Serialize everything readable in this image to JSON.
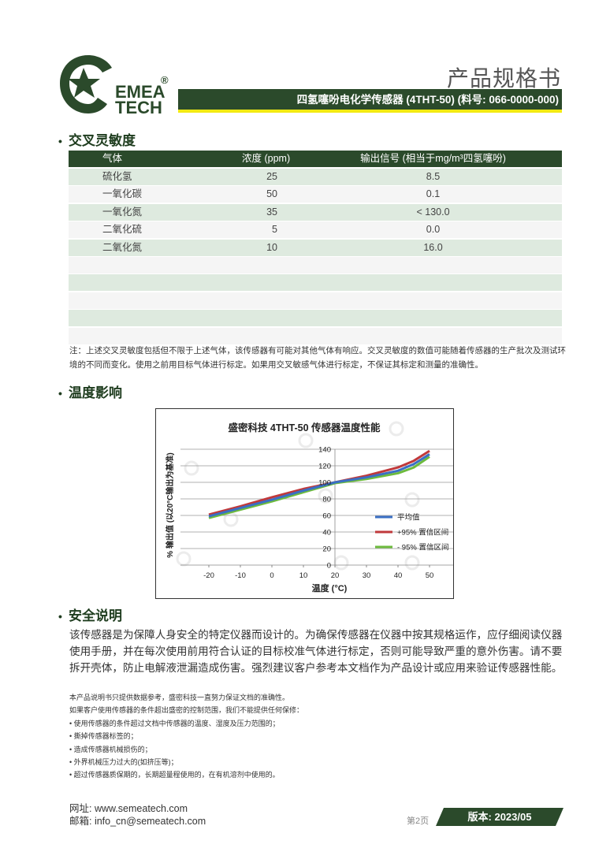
{
  "header": {
    "logo_text": "SEMEA TECH",
    "doc_title": "产品规格书",
    "product_line": "四氢噻吩电化学传感器 (4THT-50) (料号: 066-0000-000)",
    "brand_color": "#2b4a2b",
    "accent_color": "#f2ea13"
  },
  "cross_sensitivity": {
    "title": "交叉灵敏度",
    "columns": [
      "气体",
      "浓度 (ppm)",
      "输出信号 (相当于mg/m³四氢噻吩)"
    ],
    "rows": [
      [
        "硫化氢",
        "25",
        "8.5"
      ],
      [
        "一氧化碳",
        "50",
        "0.1"
      ],
      [
        "一氧化氮",
        "35",
        "< 130.0"
      ],
      [
        "二氧化硫",
        "5",
        "0.0"
      ],
      [
        "二氧化氮",
        "10",
        "16.0"
      ],
      [
        "",
        "",
        ""
      ],
      [
        "",
        "",
        ""
      ],
      [
        "",
        "",
        ""
      ],
      [
        "",
        "",
        ""
      ],
      [
        "",
        "",
        ""
      ]
    ],
    "note": "注：上述交叉灵敏度包括但不限于上述气体，该传感器有可能对其他气体有响应。交叉灵敏度的数值可能随着传感器的生产批次及测试环境的不同而变化。使用之前用目标气体进行标定。如果用交叉敏感气体进行标定，不保证其标定和测量的准确性。"
  },
  "temperature": {
    "title": "温度影响"
  },
  "chart_data": {
    "type": "line",
    "title": "盛密科技  4THT-50  传感器温度性能",
    "xlabel": "温度 (°C)",
    "ylabel": "% 输出值 (以20°C输出为基准)",
    "x": [
      -20,
      -10,
      0,
      10,
      20,
      30,
      40,
      45,
      50
    ],
    "xticks": [
      "-20",
      "-10",
      "0",
      "10",
      "20",
      "30",
      "40",
      "50"
    ],
    "yticks": [
      "0",
      "20",
      "40",
      "60",
      "80",
      "100",
      "120",
      "140"
    ],
    "xlim": [
      -20,
      50
    ],
    "ylim": [
      0,
      140
    ],
    "grid": true,
    "legend": "right",
    "watermark": "盛密科技SemeaTech",
    "series": [
      {
        "name": "平均值",
        "color": "#3a6fc4",
        "values": [
          59,
          69,
          79,
          90,
          100,
          106,
          114,
          122,
          134
        ]
      },
      {
        "name": "+95% 置信区间",
        "color": "#c0393b",
        "values": [
          61,
          71,
          82,
          92,
          100,
          108,
          118,
          126,
          138
        ]
      },
      {
        "name": "- 95% 置信区间",
        "color": "#6dbb3e",
        "values": [
          57,
          67,
          77,
          88,
          99,
          104,
          111,
          118,
          131
        ]
      }
    ]
  },
  "safety": {
    "title": "安全说明",
    "text": "该传感器是为保障人身安全的特定仪器而设计的。为确保传感器在仪器中按其规格运作，应仔细阅读仪器使用手册，并在每次使用前用符合认证的目标校准气体进行标定，否则可能导致严重的意外伤害。请不要拆开壳体，防止电解液泄漏造成伤害。强烈建议客户参考本文档作为产品设计或应用来验证传感器性能。"
  },
  "disclaimer": {
    "lines": [
      "本产品说明书只提供数据参考，盛密科技一直努力保证文档的准确性。",
      "如果客户使用传感器的条件超出盛密的控制范围，我们不能提供任何保修：",
      "• 使用传感器的条件超过文档中传感器的温度、湿度及压力范围的；",
      "• 撕掉传感器标签的；",
      "• 造成传感器机械损伤的；",
      "• 外界机械压力过大的(如挤压等)；",
      "• 超过传感器质保期的，长期超量程使用的，在有机溶剂中使用的。"
    ]
  },
  "footer": {
    "website": "网址:  www.semeatech.com",
    "email": "邮箱:  info_cn@semeatech.com",
    "page": "第2页",
    "version": "版本: 2023/05"
  }
}
